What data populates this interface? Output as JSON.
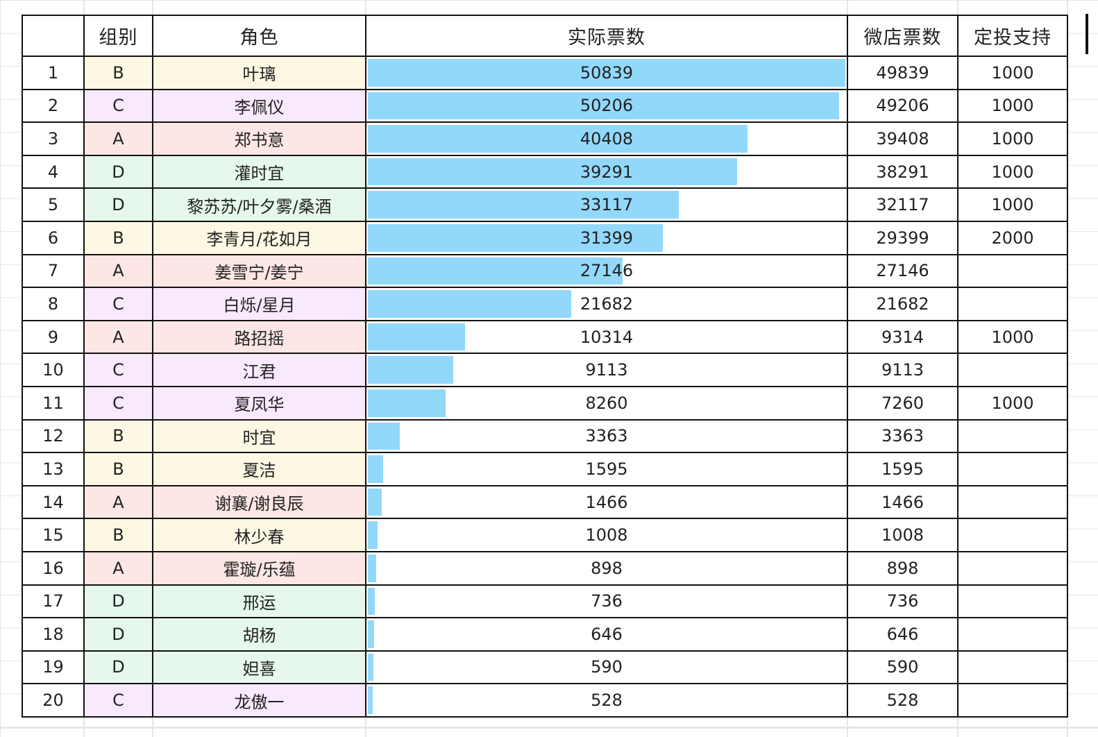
{
  "header": {
    "index": "",
    "group": "组别",
    "name": "角色",
    "actual": "实际票数",
    "weidian": "微店票数",
    "support": "定投支持"
  },
  "colors": {
    "bar": "#92d8fb",
    "group_A": "#fde7e4",
    "group_B": "#fdf8e4",
    "group_C": "#f8e9fc",
    "group_D": "#e6f8ec",
    "border": "#111111"
  },
  "bar_max": 50839,
  "rows": [
    {
      "index": "1",
      "group": "B",
      "name": "叶璃",
      "actual": "50839",
      "weidian": "49839",
      "support": "1000"
    },
    {
      "index": "2",
      "group": "C",
      "name": "李佩仪",
      "actual": "50206",
      "weidian": "49206",
      "support": "1000"
    },
    {
      "index": "3",
      "group": "A",
      "name": "郑书意",
      "actual": "40408",
      "weidian": "39408",
      "support": "1000"
    },
    {
      "index": "4",
      "group": "D",
      "name": "灌时宜",
      "actual": "39291",
      "weidian": "38291",
      "support": "1000"
    },
    {
      "index": "5",
      "group": "D",
      "name": "黎苏苏/叶夕雾/桑酒",
      "actual": "33117",
      "weidian": "32117",
      "support": "1000"
    },
    {
      "index": "6",
      "group": "B",
      "name": "李青月/花如月",
      "actual": "31399",
      "weidian": "29399",
      "support": "2000"
    },
    {
      "index": "7",
      "group": "A",
      "name": "姜雪宁/姜宁",
      "actual": "27146",
      "weidian": "27146",
      "support": ""
    },
    {
      "index": "8",
      "group": "C",
      "name": "白烁/星月",
      "actual": "21682",
      "weidian": "21682",
      "support": ""
    },
    {
      "index": "9",
      "group": "A",
      "name": "路招摇",
      "actual": "10314",
      "weidian": "9314",
      "support": "1000"
    },
    {
      "index": "10",
      "group": "C",
      "name": "江君",
      "actual": "9113",
      "weidian": "9113",
      "support": ""
    },
    {
      "index": "11",
      "group": "C",
      "name": "夏凤华",
      "actual": "8260",
      "weidian": "7260",
      "support": "1000"
    },
    {
      "index": "12",
      "group": "B",
      "name": "时宜",
      "actual": "3363",
      "weidian": "3363",
      "support": ""
    },
    {
      "index": "13",
      "group": "B",
      "name": "夏洁",
      "actual": "1595",
      "weidian": "1595",
      "support": ""
    },
    {
      "index": "14",
      "group": "A",
      "name": "谢襄/谢良辰",
      "actual": "1466",
      "weidian": "1466",
      "support": ""
    },
    {
      "index": "15",
      "group": "B",
      "name": "林少春",
      "actual": "1008",
      "weidian": "1008",
      "support": ""
    },
    {
      "index": "16",
      "group": "A",
      "name": "霍璇/乐蕴",
      "actual": "898",
      "weidian": "898",
      "support": ""
    },
    {
      "index": "17",
      "group": "D",
      "name": "邢运",
      "actual": "736",
      "weidian": "736",
      "support": ""
    },
    {
      "index": "18",
      "group": "D",
      "name": "胡杨",
      "actual": "646",
      "weidian": "646",
      "support": ""
    },
    {
      "index": "19",
      "group": "D",
      "name": "妲喜",
      "actual": "590",
      "weidian": "590",
      "support": ""
    },
    {
      "index": "20",
      "group": "C",
      "name": "龙傲一",
      "actual": "528",
      "weidian": "528",
      "support": ""
    }
  ]
}
